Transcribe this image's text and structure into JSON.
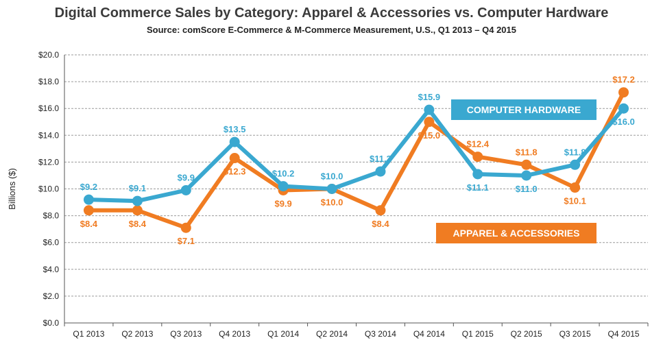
{
  "chart_data": {
    "type": "line",
    "title": "Digital Commerce Sales by Category: Apparel & Accessories vs. Computer Hardware",
    "subtitle": "Source: comScore E-Commerce & M-Commerce Measurement, U.S., Q1 2013 – Q4 2015",
    "ylabel": "Billions ($)",
    "xlabel": "",
    "ylim": [
      0,
      20
    ],
    "yticks": [
      "$0.0",
      "$2.0",
      "$4.0",
      "$6.0",
      "$8.0",
      "$10.0",
      "$12.0",
      "$14.0",
      "$16.0",
      "$18.0",
      "$20.0"
    ],
    "categories": [
      "Q1 2013",
      "Q2 2013",
      "Q3 2013",
      "Q4 2013",
      "Q1 2014",
      "Q2 2014",
      "Q3 2014",
      "Q4 2014",
      "Q1 2015",
      "Q2 2015",
      "Q3 2015",
      "Q4 2015"
    ],
    "series": [
      {
        "name": "COMPUTER HARDWARE",
        "color": "#3aa8d0",
        "values": [
          9.2,
          9.1,
          9.9,
          13.5,
          10.2,
          10.0,
          11.3,
          15.9,
          11.1,
          11.0,
          11.8,
          16.0
        ],
        "labels": [
          "$9.2",
          "$9.1",
          "$9.9",
          "$13.5",
          "$10.2",
          "$10.0",
          "$11.3",
          "$15.9",
          "$11.1",
          "$11.0",
          "$11.8",
          "$16.0"
        ],
        "label_pos": [
          "above",
          "above",
          "above",
          "above",
          "above",
          "above",
          "above",
          "above",
          "below",
          "below",
          "above",
          "below"
        ]
      },
      {
        "name": "APPAREL & ACCESSORIES",
        "color": "#f07c22",
        "values": [
          8.4,
          8.4,
          7.1,
          12.3,
          9.9,
          10.0,
          8.4,
          15.0,
          12.4,
          11.8,
          10.1,
          17.2
        ],
        "labels": [
          "$8.4",
          "$8.4",
          "$7.1",
          "$12.3",
          "$9.9",
          "$10.0",
          "$8.4",
          "$15.0",
          "$12.4",
          "$11.8",
          "$10.1",
          "$17.2"
        ],
        "label_pos": [
          "below",
          "below",
          "below",
          "below",
          "below",
          "below",
          "below",
          "below",
          "above",
          "above",
          "below",
          "above"
        ]
      }
    ],
    "legend": [
      {
        "text": "COMPUTER HARDWARE",
        "color": "#3aa8d0"
      },
      {
        "text": "APPAREL & ACCESSORIES",
        "color": "#f07c22"
      }
    ]
  }
}
